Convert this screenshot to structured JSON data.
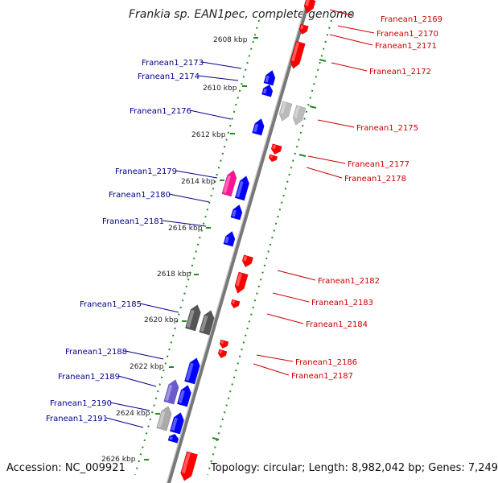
{
  "title": "Frankia sp. EAN1pec, complete genome",
  "accession": "Accession: NC_009921",
  "topology": "Topology: circular; Length: 8,982,042 bp; Genes: 7,249",
  "ticks": [
    "2608 kbp",
    "2610 kbp",
    "2612 kbp",
    "2614 kbp",
    "2616 kbp",
    "2618 kbp",
    "2620 kbp",
    "2622 kbp",
    "2624 kbp",
    "2626 kbp"
  ],
  "genes_left": [
    {
      "name": "Franean1_2173",
      "strand": "+",
      "color": "#0000ff"
    },
    {
      "name": "Franean1_2174",
      "strand": "+",
      "color": "#0000ff"
    },
    {
      "name": "Franean1_2176",
      "strand": "+",
      "color": "#0000ff"
    },
    {
      "name": "Franean1_2179",
      "strand": "+",
      "color": "#ff1493"
    },
    {
      "name": "Franean1_2180",
      "strand": "+",
      "color": "#0000ff"
    },
    {
      "name": "Franean1_2181",
      "strand": "+",
      "color": "#0000ff"
    },
    {
      "name": "Franean1_2185",
      "strand": "+",
      "color": "#555555"
    },
    {
      "name": "Franean1_2188",
      "strand": "+",
      "color": "#0000ff"
    },
    {
      "name": "Franean1_2189",
      "strand": "+",
      "color": "#6a5acd"
    },
    {
      "name": "Franean1_2190",
      "strand": "+",
      "color": "#aaaaaa"
    },
    {
      "name": "Franean1_2191",
      "strand": "+",
      "color": "#0000ff"
    }
  ],
  "genes_right": [
    {
      "name": "Franean1_2169",
      "strand": "-",
      "color": "#ff0000"
    },
    {
      "name": "Franean1_2170",
      "strand": "-",
      "color": "#ff0000"
    },
    {
      "name": "Franean1_2171",
      "strand": "-",
      "color": "#ff0000"
    },
    {
      "name": "Franean1_2172",
      "strand": "-",
      "color": "#ff0000"
    },
    {
      "name": "Franean1_2175",
      "strand": "-",
      "color": "#bbbbbb"
    },
    {
      "name": "Franean1_2177",
      "strand": "-",
      "color": "#ff0000"
    },
    {
      "name": "Franean1_2178",
      "strand": "-",
      "color": "#ff0000"
    },
    {
      "name": "Franean1_2182",
      "strand": "-",
      "color": "#ff0000"
    },
    {
      "name": "Franean1_2183",
      "strand": "-",
      "color": "#ff0000"
    },
    {
      "name": "Franean1_2184",
      "strand": "-",
      "color": "#ff0000"
    },
    {
      "name": "Franean1_2186",
      "strand": "-",
      "color": "#ff0000"
    },
    {
      "name": "Franean1_2187",
      "strand": "-",
      "color": "#ff0000"
    }
  ],
  "colors": {
    "forward_label": "#00008b",
    "reverse_label": "#cc0000",
    "dots": "#228b22",
    "backbone": "#777777"
  }
}
